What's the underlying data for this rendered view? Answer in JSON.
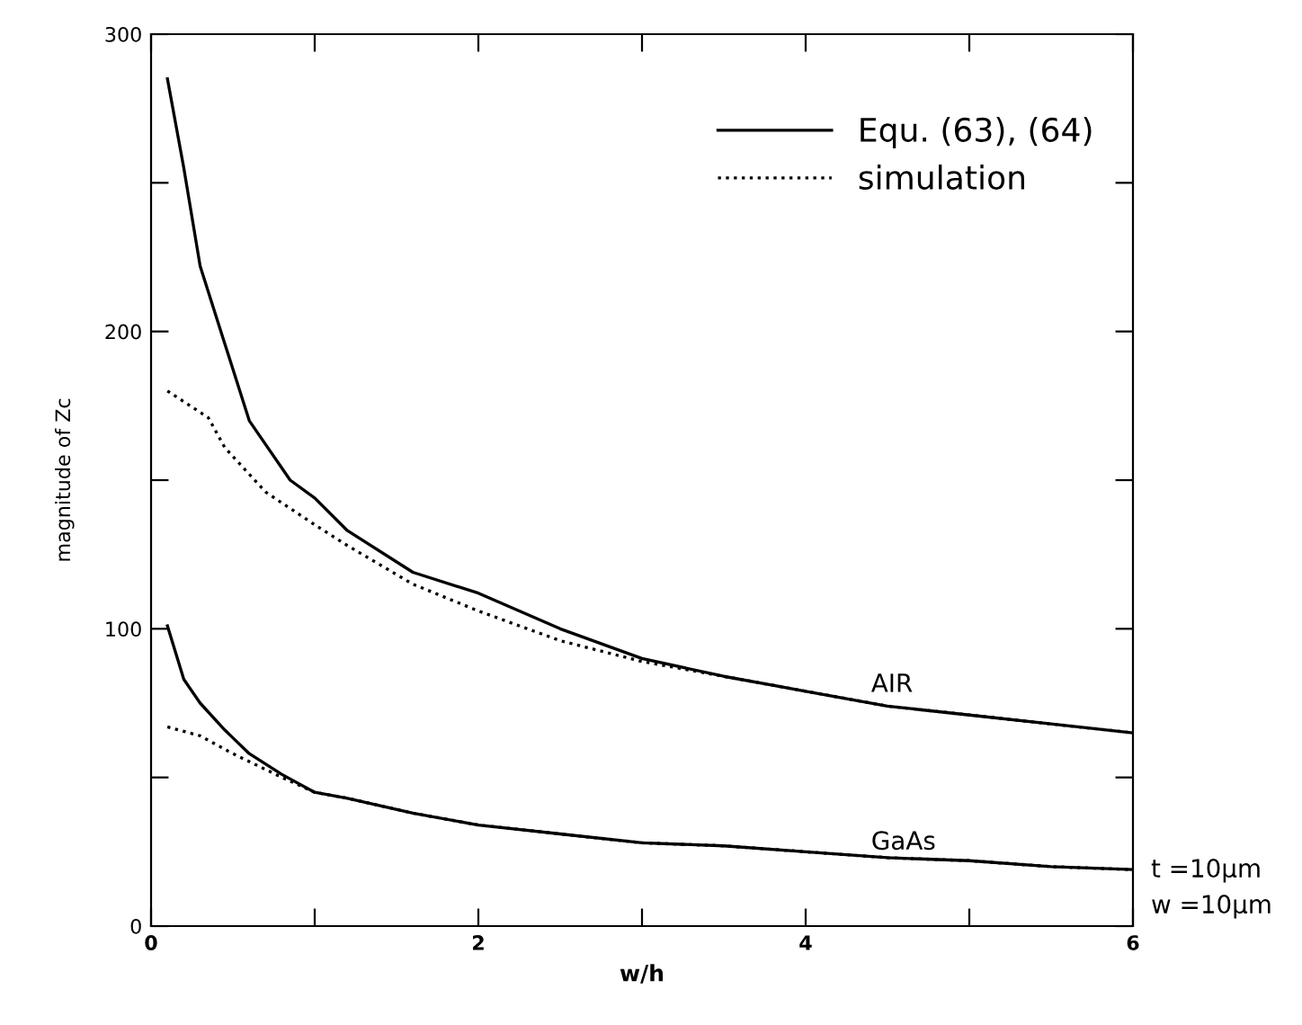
{
  "chart_data": {
    "type": "line",
    "xlabel": "w/h",
    "ylabel": "magnitude of Zc",
    "xlim": [
      0,
      6
    ],
    "ylim": [
      0,
      300
    ],
    "xticks": [
      0,
      {
        "value": 1,
        "label": null
      },
      2,
      {
        "value": 3,
        "label": null
      },
      4,
      {
        "value": 5,
        "label": null
      },
      6
    ],
    "yticks": [
      0,
      {
        "value": 50,
        "label": null
      },
      100,
      {
        "value": 150,
        "label": null
      },
      200,
      {
        "value": 250,
        "label": null
      },
      300
    ],
    "grid": false,
    "legend": "top right",
    "marker": "none",
    "series": [
      {
        "name": "Equ. (63), (64)",
        "color": "#000000",
        "line_style": "solid",
        "x": [
          0.1,
          0.2,
          0.3,
          0.45,
          0.6,
          0.85,
          1.0,
          1.2,
          1.6,
          2.0,
          2.5,
          3.0,
          3.5,
          4.0,
          4.5,
          5.0,
          5.5,
          6.0
        ],
        "values": [
          285,
          255,
          222,
          196,
          170,
          150,
          144,
          133,
          119,
          112,
          100,
          90,
          84,
          79,
          74,
          71,
          68,
          65
        ]
      },
      {
        "name": "simulation",
        "color": "#000000",
        "line_style": "dotted",
        "x": [
          0.1,
          0.35,
          0.45,
          0.7,
          1.0,
          1.2,
          1.6,
          2.0,
          2.5,
          3.0,
          3.5,
          4.0,
          4.5,
          5.0,
          5.5,
          6.0
        ],
        "values": [
          180,
          171,
          161,
          146,
          135,
          128,
          115,
          106,
          96,
          89,
          84,
          79,
          74,
          71,
          68,
          65
        ]
      },
      {
        "color": "#000000",
        "line_style": "solid",
        "x": [
          0.1,
          0.2,
          0.3,
          0.45,
          0.6,
          0.8,
          1.0,
          1.2,
          1.6,
          2.0,
          2.5,
          3.0,
          3.5,
          4.0,
          4.5,
          5.0,
          5.5,
          6.0
        ],
        "values": [
          101,
          83,
          75,
          66,
          58,
          51,
          45,
          43,
          38,
          34,
          31,
          28,
          27,
          25,
          23,
          22,
          20,
          19
        ]
      },
      {
        "color": "#000000",
        "line_style": "dotted",
        "x": [
          0.1,
          0.3,
          0.5,
          0.8,
          1.0,
          1.2,
          1.6,
          2.0,
          2.5,
          3.0,
          3.5,
          4.0,
          4.5,
          5.0,
          5.5,
          6.0
        ],
        "values": [
          67,
          64,
          58,
          50,
          45,
          43,
          38,
          34,
          31,
          28,
          27,
          25,
          23,
          22,
          20,
          19
        ]
      }
    ],
    "annotations": [
      {
        "text": "AIR",
        "x": 4.4,
        "y": 77
      },
      {
        "text": "GaAs",
        "x": 4.4,
        "y": 24
      },
      "t =10μm",
      "w =10μm"
    ]
  }
}
